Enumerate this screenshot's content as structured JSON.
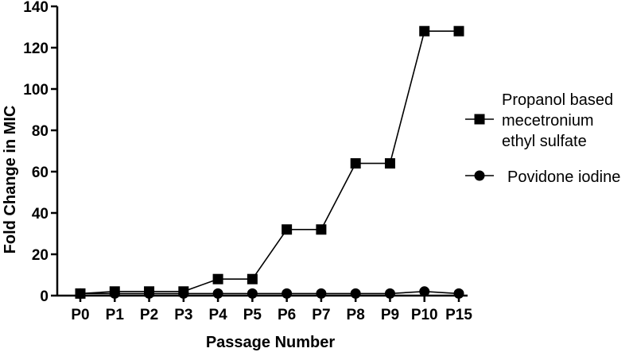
{
  "chart_data": {
    "type": "line",
    "title": "",
    "xlabel": "Passage Number",
    "ylabel": "Fold Change in MIC",
    "categories": [
      "P0",
      "P1",
      "P2",
      "P3",
      "P4",
      "P5",
      "P6",
      "P7",
      "P8",
      "P9",
      "P10",
      "P15"
    ],
    "ylim": [
      0,
      140
    ],
    "yticks": [
      0,
      20,
      40,
      60,
      80,
      100,
      120,
      140
    ],
    "grid": false,
    "legend_position": "right",
    "series": [
      {
        "name_lines": [
          "Propanol based",
          "mecetronium",
          "ethyl sulfate"
        ],
        "marker": "square",
        "color": "#000000",
        "values": [
          1,
          2,
          2,
          2,
          8,
          8,
          32,
          32,
          64,
          64,
          128,
          128
        ]
      },
      {
        "name_lines": [
          "Povidone iodine"
        ],
        "marker": "circle",
        "color": "#000000",
        "values": [
          1,
          1,
          1,
          1,
          1,
          1,
          1,
          1,
          1,
          1,
          2,
          1
        ]
      }
    ]
  }
}
